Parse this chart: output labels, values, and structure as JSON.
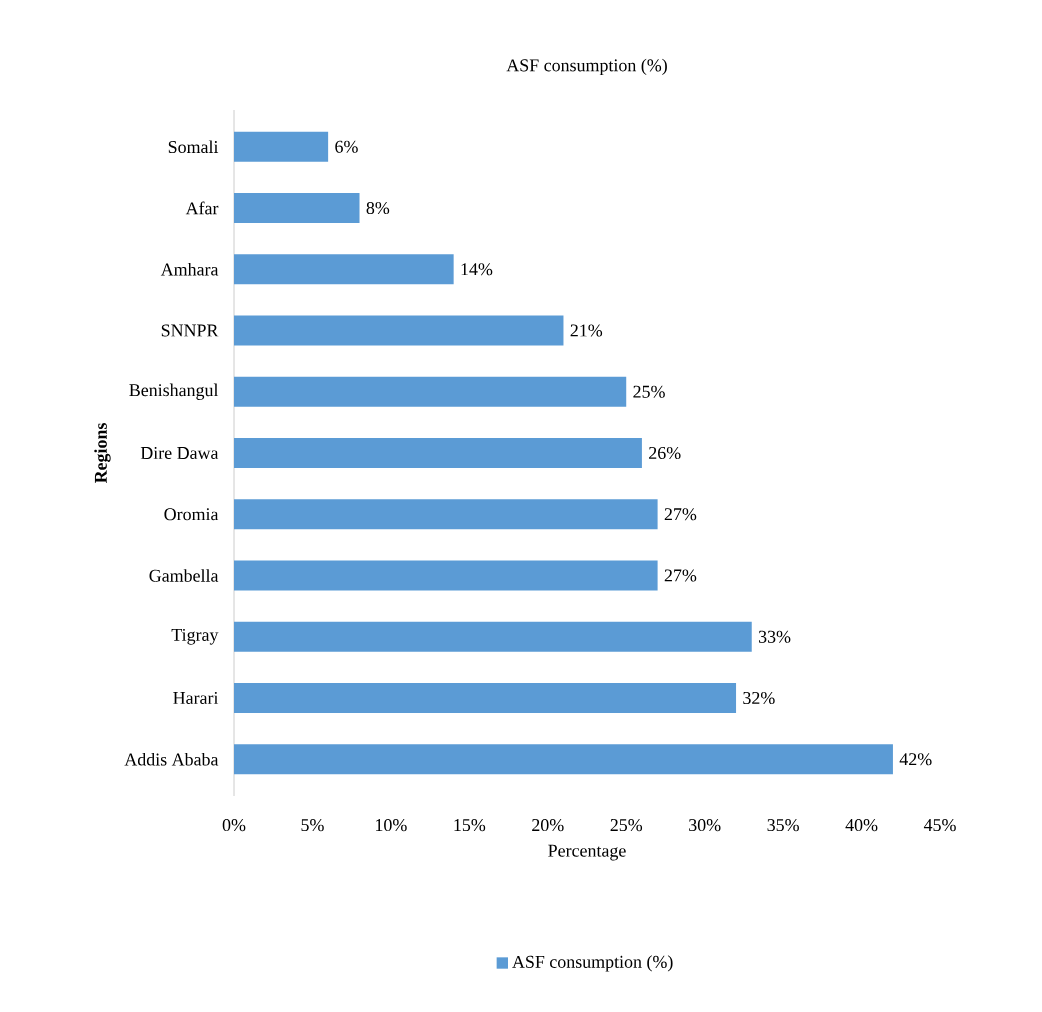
{
  "chart_data": {
    "type": "bar",
    "orientation": "horizontal",
    "title": "ASF consumption (%)",
    "xlabel": "Percentage",
    "ylabel": "Regions",
    "categories": [
      "Somali",
      "Afar",
      "Amhara",
      "SNNPR",
      "Benishangul",
      "Dire Dawa",
      "Oromia",
      "Gambella",
      "Tigray",
      "Harari",
      "Addis Ababa"
    ],
    "series": [
      {
        "name": "ASF consumption (%)",
        "color": "#5b9bd5",
        "values": [
          6,
          8,
          14,
          21,
          25,
          26,
          27,
          27,
          33,
          32,
          42
        ],
        "value_labels": [
          "6%",
          "8%",
          "14%",
          "21%",
          "25%",
          "26%",
          "27%",
          "27%",
          "33%",
          "32%",
          "42%"
        ]
      }
    ],
    "xlim": [
      0,
      45
    ],
    "xticks": [
      {
        "value": 0,
        "label": "0%"
      },
      {
        "value": 5,
        "label": "5%"
      },
      {
        "value": 10,
        "label": "10%"
      },
      {
        "value": 15,
        "label": "15%"
      },
      {
        "value": 20,
        "label": "20%"
      },
      {
        "value": 25,
        "label": "25%"
      },
      {
        "value": 30,
        "label": "30%"
      },
      {
        "value": 35,
        "label": "35%"
      },
      {
        "value": 40,
        "label": "40%"
      },
      {
        "value": 45,
        "label": "45%"
      }
    ],
    "legend": "bottom"
  }
}
